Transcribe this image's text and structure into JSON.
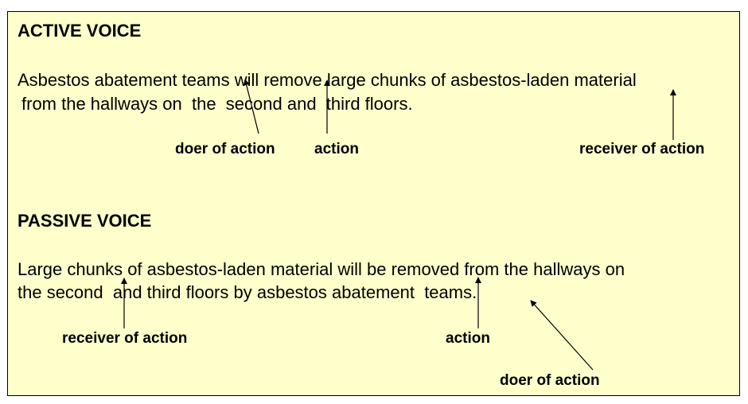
{
  "active": {
    "heading": "ACTIVE VOICE",
    "line1": "Asbestos abatement teams will remove large chunks of asbestos-laden material",
    "line2": "from the hallways on  the  second and  third floors.",
    "labels": {
      "doer": "doer of action",
      "action": "action",
      "receiver": "receiver of action"
    }
  },
  "passive": {
    "heading": "PASSIVE VOICE",
    "line1": "Large chunks of asbestos-laden material will be removed from the hallways on",
    "line2": "the second  and third floors by asbestos abatement  teams.",
    "labels": {
      "receiver": "receiver of action",
      "action": "action",
      "doer": "doer of action"
    }
  },
  "colors": {
    "panel_background": "#ffffcc",
    "border": "#000000",
    "text": "#000000"
  }
}
